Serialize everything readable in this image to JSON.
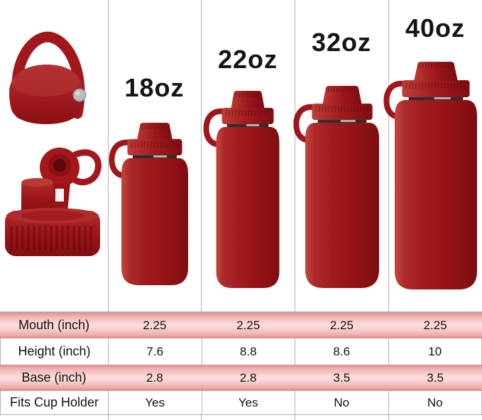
{
  "size_labels": [
    "18oz",
    "22oz",
    "32oz",
    "40oz"
  ],
  "images": {
    "lids": [
      "flex-handle-lid",
      "spout-lid-open"
    ],
    "bottles": [
      "bottle-18oz",
      "bottle-22oz",
      "bottle-32oz",
      "bottle-40oz"
    ]
  },
  "table": {
    "rows": [
      {
        "label": "Mouth (inch)",
        "values": [
          "2.25",
          "2.25",
          "2.25",
          "2.25"
        ]
      },
      {
        "label": "Height (inch)",
        "values": [
          "7.6",
          "8.8",
          "8.6",
          "10"
        ]
      },
      {
        "label": "Base (inch)",
        "values": [
          "2.8",
          "2.8",
          "3.5",
          "3.5"
        ]
      },
      {
        "label": "Fits Cup Holder",
        "values": [
          "Yes",
          "Yes",
          "No",
          "No"
        ]
      }
    ]
  },
  "colors": {
    "bottle_red": "#9c1518",
    "lid_red": "#a2171c",
    "pink_row_light": "#fcdbdb",
    "pink_row_dark": "#db8e8e",
    "divider_gray": "#b4b4b4",
    "text": "#111111",
    "rivet_silver": "#b7bcc2"
  },
  "chart_data": {
    "type": "table",
    "columns": [
      "18oz",
      "22oz",
      "32oz",
      "40oz"
    ],
    "rows": [
      {
        "label": "Mouth (inch)",
        "values": [
          "2.25",
          "2.25",
          "2.25",
          "2.25"
        ]
      },
      {
        "label": "Height (inch)",
        "values": [
          "7.6",
          "8.8",
          "8.6",
          "10"
        ]
      },
      {
        "label": "Base (inch)",
        "values": [
          "2.8",
          "2.8",
          "3.5",
          "3.5"
        ]
      },
      {
        "label": "Fits Cup Holder",
        "values": [
          "Yes",
          "Yes",
          "No",
          "No"
        ]
      }
    ]
  }
}
